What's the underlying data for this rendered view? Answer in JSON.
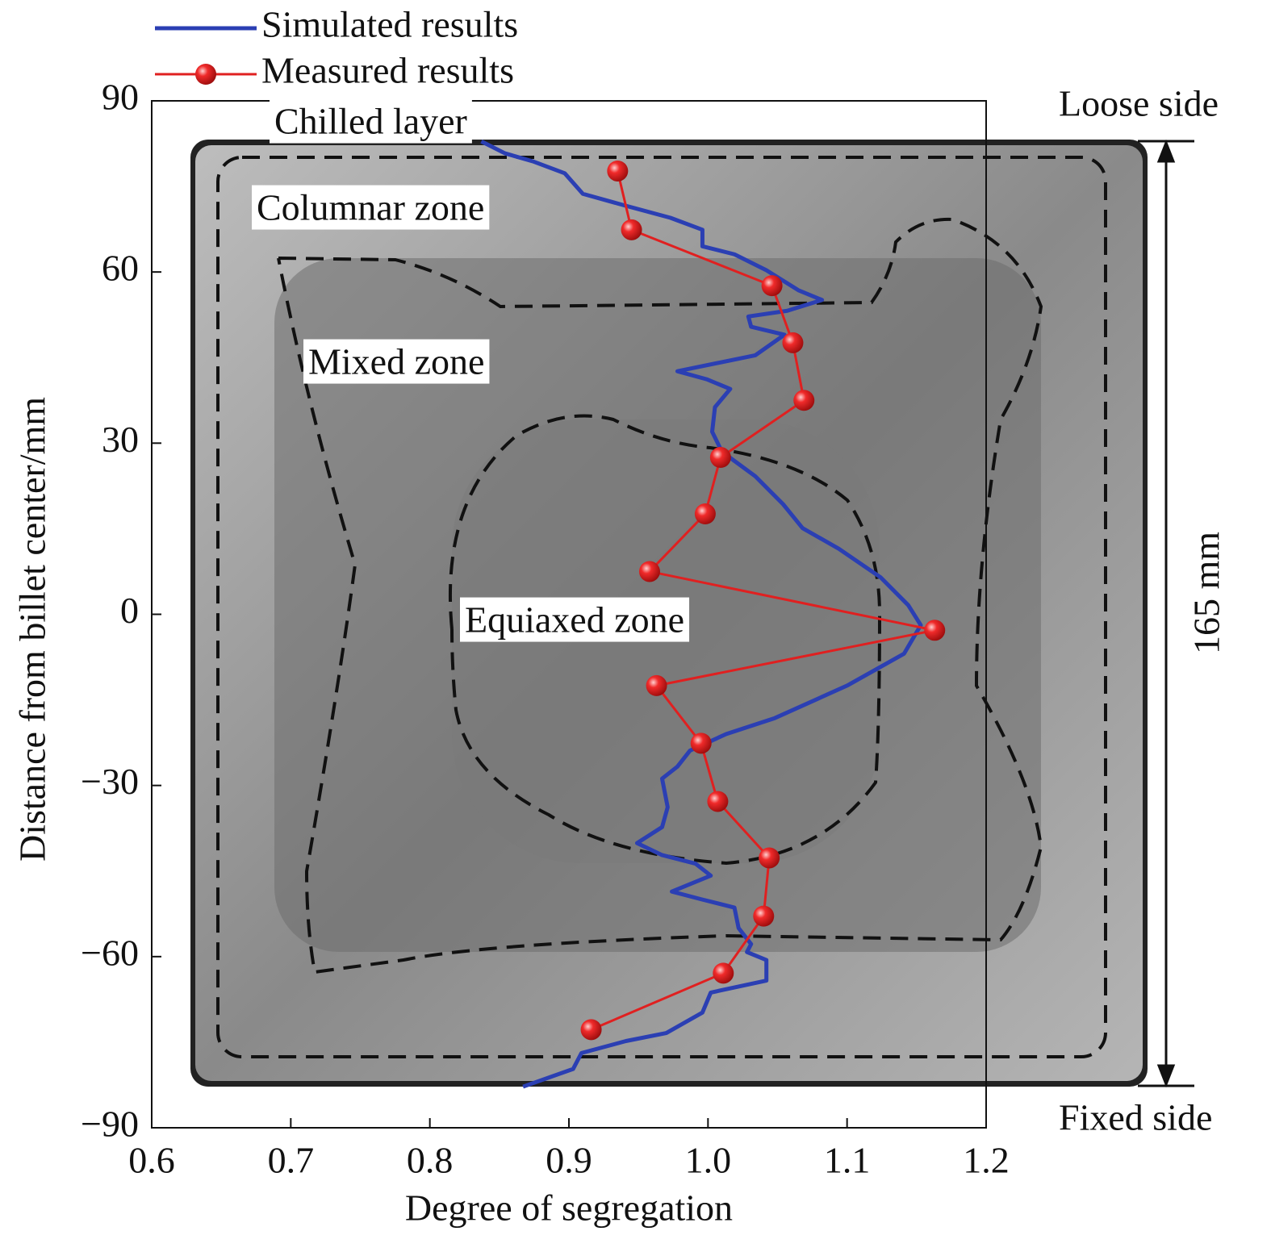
{
  "chart_data": {
    "type": "line",
    "x_label": "Degree of segregation",
    "y_label": "Distance from billet center/mm",
    "xlim": [
      0.6,
      1.2
    ],
    "xticks": [
      0.6,
      0.7,
      0.8,
      0.9,
      {
        "value": 1,
        "label": "1.0"
      },
      1.1,
      1.2
    ],
    "ylim": [
      -90,
      90
    ],
    "yticks": [
      {
        "value": -90,
        "label": "−90"
      },
      {
        "value": -60,
        "label": "−60"
      },
      {
        "value": -30,
        "label": "−30"
      },
      0,
      30,
      60,
      90
    ],
    "annotations": [
      "Chilled layer",
      "Columnar zone",
      "Mixed zone",
      "Equiaxed zone",
      "Loose side",
      "Fixed side",
      "165 mm"
    ],
    "series": [
      {
        "name": "Simulated results",
        "color": "#2b3fb3",
        "marker": false,
        "values": [
          0.837,
          0.854,
          0.874,
          0.897,
          0.91,
          0.941,
          0.973,
          0.996,
          0.996,
          1.019,
          1.042,
          1.065,
          1.082,
          1.057,
          1.029,
          1.031,
          1.055,
          1.034,
          0.978,
          0.999,
          1.016,
          1.005,
          1.003,
          1.01,
          1.034,
          1.054,
          1.068,
          1.094,
          1.124,
          1.144,
          1.153,
          1.141,
          1.1,
          1.048,
          1.013,
          0.987,
          0.978,
          0.967,
          0.971,
          0.967,
          0.949,
          0.967,
          0.991,
          1.002,
          0.974,
          0.996,
          1.019,
          1.022,
          1.031,
          1.028,
          1.042,
          1.042,
          1.002,
          0.996,
          0.97,
          0.941,
          0.909,
          0.903,
          0.867
        ],
        "y": [
          82.9,
          80.8,
          79.4,
          77.3,
          73.7,
          71.6,
          69.5,
          67.4,
          64.5,
          63.1,
          60.3,
          56.8,
          55.1,
          53.2,
          52.2,
          50.4,
          49.0,
          45.4,
          42.6,
          41.2,
          39.5,
          36.3,
          32.0,
          28.5,
          24.2,
          19.3,
          15.1,
          11.5,
          6.5,
          1.6,
          -1.9,
          -6.9,
          -12.5,
          -18.2,
          -21.0,
          -23.9,
          -26.7,
          -28.8,
          -33.8,
          -37.3,
          -40.1,
          -42.2,
          -43.7,
          -45.8,
          -48.6,
          -50.0,
          -51.4,
          -55.0,
          -57.8,
          -59.2,
          -60.6,
          -64.2,
          -66.3,
          -69.8,
          -73.4,
          -74.8,
          -76.9,
          -79.7,
          -82.8
        ]
      },
      {
        "name": "Measured results",
        "color": "#e02020",
        "marker": true,
        "values": [
          0.935,
          0.945,
          1.046,
          1.061,
          1.069,
          1.009,
          0.998,
          0.958,
          1.163,
          0.963,
          0.995,
          1.007,
          1.044,
          1.04,
          1.011,
          0.916
        ],
        "y": [
          77.7,
          67.4,
          57.6,
          47.6,
          37.5,
          27.5,
          17.6,
          7.5,
          -2.8,
          -12.5,
          -22.6,
          -32.8,
          -42.7,
          -52.9,
          -62.9,
          -72.8
        ]
      }
    ]
  }
}
